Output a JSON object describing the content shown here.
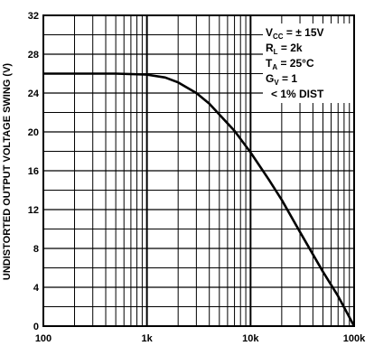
{
  "chart_data": {
    "type": "line",
    "xscale": "log",
    "xlim": [
      100,
      100000
    ],
    "ylim": [
      0,
      32
    ],
    "grid": true,
    "xlabel": "",
    "ylabel": "UNDISTORTED OUTPUT VOLTAGE SWING (V)",
    "x_ticks": [
      {
        "value": 100,
        "label": "100"
      },
      {
        "value": 1000,
        "label": "1k"
      },
      {
        "value": 10000,
        "label": "10k"
      },
      {
        "value": 100000,
        "label": "100k"
      }
    ],
    "y_ticks": [
      0,
      4,
      8,
      12,
      16,
      20,
      24,
      28,
      32
    ],
    "series": [
      {
        "color": "#000000",
        "x": [
          100,
          500,
          1000,
          1500,
          2000,
          3000,
          4000,
          5000,
          7000,
          10000,
          15000,
          20000,
          30000,
          50000,
          70000,
          100000
        ],
        "y": [
          26,
          26,
          25.9,
          25.6,
          25.1,
          24.0,
          22.9,
          21.8,
          20.1,
          17.9,
          15.1,
          13.0,
          9.7,
          5.6,
          3.1,
          0
        ]
      }
    ],
    "annotations": [
      {
        "main": "V",
        "sub": "CC",
        "rest": " = ± 15V"
      },
      {
        "main": "R",
        "sub": "L",
        "rest": " = 2k"
      },
      {
        "main": "T",
        "sub": "A",
        "rest": " = 25°C"
      },
      {
        "main": "G",
        "sub": "V",
        "rest": " = 1"
      },
      {
        "main": "< 1% DIST",
        "sub": "",
        "rest": ""
      }
    ]
  }
}
